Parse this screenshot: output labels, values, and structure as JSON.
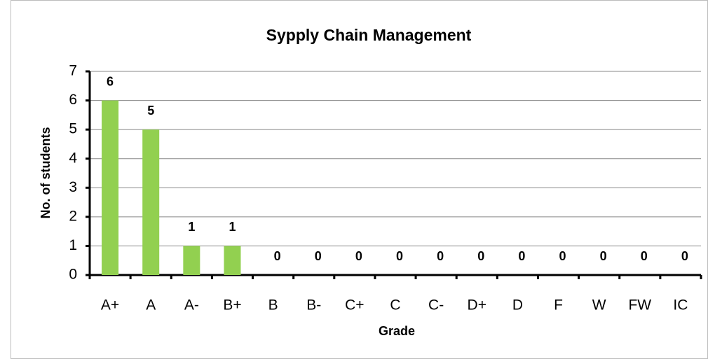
{
  "chart_data": {
    "type": "bar",
    "title": "Sypply Chain Management",
    "x_label": "Grade",
    "y_label": "No. of students",
    "categories": [
      "A+",
      "A",
      "A-",
      "B+",
      "B",
      "B-",
      "C+",
      "C",
      "C-",
      "D+",
      "D",
      "F",
      "W",
      "FW",
      "IC"
    ],
    "values": [
      6,
      5,
      1,
      1,
      0,
      0,
      0,
      0,
      0,
      0,
      0,
      0,
      0,
      0,
      0
    ],
    "color": "#92d050",
    "ylim": [
      0,
      7
    ],
    "yticks": [
      0,
      1,
      2,
      3,
      4,
      5,
      6,
      7
    ],
    "grid": true
  }
}
